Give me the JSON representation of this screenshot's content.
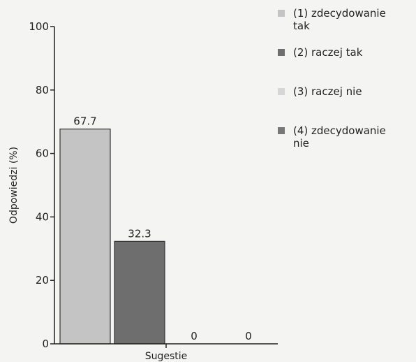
{
  "chart_data": {
    "type": "bar",
    "categories": [
      "(1) zdecydowanie tak",
      "(2) raczej tak",
      "(3) raczej nie",
      "(4) zdecydowanie nie"
    ],
    "values": [
      67.7,
      32.3,
      0,
      0
    ],
    "value_labels": [
      "67.7",
      "32.3",
      "0",
      "0"
    ],
    "xlabel": "Sugestie",
    "ylabel": "Odpowiedzi (%)",
    "ylim": [
      0,
      100
    ],
    "yticks": [
      0,
      20,
      40,
      60,
      80,
      100
    ],
    "grid": false,
    "legend_position": "top-right",
    "colors": [
      "#c4c4c4",
      "#6e6e6e",
      "#d6d6d6",
      "#777777"
    ]
  },
  "legend": {
    "items": [
      {
        "line1": "(1) zdecydowanie",
        "line2": "tak"
      },
      {
        "line1": "(2) raczej tak",
        "line2": ""
      },
      {
        "line1": "(3) raczej nie",
        "line2": ""
      },
      {
        "line1": "(4) zdecydowanie",
        "line2": "nie"
      }
    ]
  }
}
